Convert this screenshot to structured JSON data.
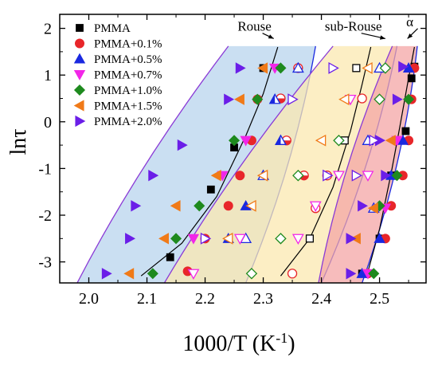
{
  "chart_data": {
    "type": "scatter",
    "xlabel": "1000/T (K",
    "xlabel_sup": "-1",
    "xlabel_close": ")",
    "ylabel": "lnτ",
    "xlim": [
      1.95,
      2.58
    ],
    "ylim": [
      -3.45,
      2.3
    ],
    "x_ticks": [
      2.0,
      2.1,
      2.2,
      2.3,
      2.4,
      2.5
    ],
    "x_tick_labels": [
      "2.0",
      "2.1",
      "2.2",
      "2.3",
      "2.4",
      "2.5"
    ],
    "y_ticks": [
      -3,
      -2,
      -1,
      0,
      1,
      2
    ],
    "y_tick_labels": [
      "-3",
      "-2",
      "-1",
      "0",
      "1",
      "2"
    ],
    "grid": false,
    "legend_position": "top-left",
    "annotations": [
      {
        "text": "Rouse",
        "x": 2.285,
        "y": 2.05,
        "arrow_to": [
          2.318,
          1.78
        ]
      },
      {
        "text": "sub-Rouse",
        "x": 2.455,
        "y": 2.05,
        "arrow_to": [
          2.51,
          1.78
        ]
      },
      {
        "text": "α",
        "x": 2.552,
        "y": 2.15,
        "arrow_to": [
          2.548,
          1.78
        ]
      }
    ],
    "bands": [
      {
        "name": "Rouse",
        "color": "#b8d4ee",
        "left": [
          [
            1.98,
            -3.45
          ],
          [
            2.24,
            1.62
          ]
        ],
        "right": [
          [
            2.27,
            -3.45
          ],
          [
            2.39,
            1.62
          ]
        ]
      },
      {
        "name": "sub-Rouse",
        "color": "#fbe8b0",
        "left": [
          [
            2.13,
            -3.45
          ],
          [
            2.42,
            1.62
          ]
        ],
        "right": [
          [
            2.4,
            -3.45
          ],
          [
            2.53,
            1.62
          ]
        ]
      },
      {
        "name": "alpha",
        "color": "#f4a6a6",
        "left": [
          [
            2.395,
            -3.45
          ],
          [
            2.522,
            1.62
          ]
        ],
        "right": [
          [
            2.47,
            -3.45
          ],
          [
            2.565,
            1.62
          ]
        ]
      }
    ],
    "fit_lines": [
      {
        "band": "Rouse",
        "x": [
          2.09,
          2.16,
          2.22,
          2.27,
          2.3,
          2.325
        ],
        "y": [
          -3.3,
          -2.6,
          -1.6,
          -0.3,
          0.6,
          1.6
        ]
      },
      {
        "band": "sub-Rouse",
        "x": [
          2.33,
          2.38,
          2.42,
          2.45,
          2.47,
          2.485
        ],
        "y": [
          -3.3,
          -2.5,
          -1.4,
          -0.2,
          0.8,
          1.6
        ]
      },
      {
        "band": "alpha",
        "x": [
          2.478,
          2.5,
          2.52,
          2.535,
          2.548,
          2.56
        ],
        "y": [
          -3.3,
          -2.3,
          -1.1,
          -0.1,
          0.8,
          1.6
        ]
      }
    ],
    "series": [
      {
        "name": "PMMA",
        "marker": "square",
        "color": "#000000",
        "filled": [
          [
            2.14,
            -2.9
          ],
          [
            2.21,
            -1.45
          ],
          [
            2.25,
            -0.55
          ],
          [
            2.3,
            1.15
          ],
          [
            2.47,
            -3.25
          ],
          [
            2.5,
            -2.5
          ],
          [
            2.52,
            -1.15
          ],
          [
            2.545,
            -0.2
          ],
          [
            2.555,
            0.93
          ],
          [
            2.56,
            1.18
          ]
        ],
        "open": [
          [
            2.38,
            -2.5
          ],
          [
            2.44,
            -0.4
          ],
          [
            2.46,
            1.15
          ]
        ]
      },
      {
        "name": "PMMA+0.1%",
        "marker": "circle",
        "color": "#e8262a",
        "filled": [
          [
            2.17,
            -3.2
          ],
          [
            2.2,
            -2.5
          ],
          [
            2.24,
            -1.8
          ],
          [
            2.26,
            -1.15
          ],
          [
            2.28,
            -0.4
          ],
          [
            2.29,
            0.48
          ],
          [
            2.48,
            -3.25
          ],
          [
            2.51,
            -2.5
          ],
          [
            2.52,
            -1.8
          ],
          [
            2.54,
            -1.15
          ],
          [
            2.55,
            -0.4
          ],
          [
            2.555,
            0.48
          ],
          [
            2.56,
            1.15
          ]
        ],
        "open": [
          [
            2.35,
            -3.25
          ],
          [
            2.39,
            -1.85
          ],
          [
            2.41,
            -1.15
          ],
          [
            2.47,
            0.5
          ]
        ],
        "half": [
          [
            2.36,
            1.15
          ],
          [
            2.33,
            0.5
          ],
          [
            2.34,
            -0.4
          ],
          [
            2.37,
            -1.15
          ]
        ]
      },
      {
        "name": "PMMA+0.5%",
        "marker": "triangle-up",
        "color": "#1a29e0",
        "filled": [
          [
            2.24,
            -2.5
          ],
          [
            2.27,
            -1.8
          ],
          [
            2.33,
            -0.4
          ],
          [
            2.47,
            -3.25
          ],
          [
            2.5,
            -2.5
          ],
          [
            2.52,
            -1.15
          ],
          [
            2.54,
            -0.4
          ],
          [
            2.55,
            1.15
          ]
        ],
        "open": [
          [
            2.27,
            -2.5
          ],
          [
            2.3,
            -1.15
          ],
          [
            2.36,
            1.15
          ],
          [
            2.48,
            -0.4
          ],
          [
            2.5,
            1.15
          ],
          [
            2.49,
            -1.85
          ]
        ],
        "half": [
          [
            2.32,
            0.48
          ],
          [
            2.33,
            -0.4
          ]
        ]
      },
      {
        "name": "PMMA+0.7%",
        "marker": "triangle-down",
        "color": "#f226e8",
        "filled": [
          [
            2.18,
            -2.5
          ],
          [
            2.23,
            -1.15
          ],
          [
            2.27,
            -0.4
          ],
          [
            2.32,
            1.15
          ],
          [
            2.48,
            -3.25
          ],
          [
            2.51,
            -1.85
          ],
          [
            2.53,
            -0.4
          ]
        ],
        "open": [
          [
            2.18,
            -3.25
          ],
          [
            2.26,
            -2.5
          ],
          [
            2.36,
            -2.5
          ],
          [
            2.39,
            -1.8
          ],
          [
            2.43,
            -1.15
          ],
          [
            2.45,
            0.48
          ],
          [
            2.48,
            -1.15
          ]
        ]
      },
      {
        "name": "PMMA+1.0%",
        "marker": "diamond",
        "color": "#1e8a1e",
        "filled": [
          [
            2.11,
            -3.25
          ],
          [
            2.15,
            -2.5
          ],
          [
            2.19,
            -1.8
          ],
          [
            2.25,
            -0.4
          ],
          [
            2.29,
            0.48
          ],
          [
            2.33,
            1.15
          ],
          [
            2.49,
            -3.25
          ],
          [
            2.5,
            -1.8
          ],
          [
            2.53,
            -1.15
          ],
          [
            2.55,
            0.48
          ]
        ],
        "open": [
          [
            2.28,
            -3.25
          ],
          [
            2.33,
            -2.5
          ],
          [
            2.36,
            -1.15
          ],
          [
            2.43,
            -0.4
          ],
          [
            2.5,
            0.48
          ],
          [
            2.51,
            1.15
          ]
        ]
      },
      {
        "name": "PMMA+1.5%",
        "marker": "triangle-left",
        "color": "#f07a18",
        "filled": [
          [
            2.07,
            -3.25
          ],
          [
            2.13,
            -2.5
          ],
          [
            2.15,
            -1.8
          ],
          [
            2.22,
            -1.15
          ],
          [
            2.26,
            0.48
          ],
          [
            2.3,
            1.15
          ],
          [
            2.46,
            -2.5
          ],
          [
            2.49,
            -1.85
          ],
          [
            2.52,
            -0.4
          ]
        ],
        "open": [
          [
            2.24,
            -2.5
          ],
          [
            2.28,
            -1.8
          ],
          [
            2.3,
            -1.15
          ],
          [
            2.4,
            -0.4
          ],
          [
            2.44,
            0.48
          ],
          [
            2.48,
            1.15
          ]
        ]
      },
      {
        "name": "PMMA+2.0%",
        "marker": "triangle-right",
        "color": "#6b1ee8",
        "filled": [
          [
            2.03,
            -3.25
          ],
          [
            2.07,
            -2.5
          ],
          [
            2.08,
            -1.8
          ],
          [
            2.11,
            -1.15
          ],
          [
            2.16,
            -0.5
          ],
          [
            2.24,
            0.48
          ],
          [
            2.26,
            1.15
          ],
          [
            2.45,
            -3.25
          ],
          [
            2.45,
            -2.5
          ],
          [
            2.47,
            -1.8
          ],
          [
            2.51,
            -1.15
          ],
          [
            2.5,
            -0.4
          ],
          [
            2.53,
            0.48
          ],
          [
            2.54,
            1.18
          ]
        ],
        "open": [
          [
            2.2,
            -2.5
          ],
          [
            2.35,
            0.48
          ],
          [
            2.41,
            -1.15
          ],
          [
            2.46,
            -1.15
          ],
          [
            2.49,
            -0.4
          ],
          [
            2.42,
            1.15
          ]
        ]
      }
    ]
  }
}
